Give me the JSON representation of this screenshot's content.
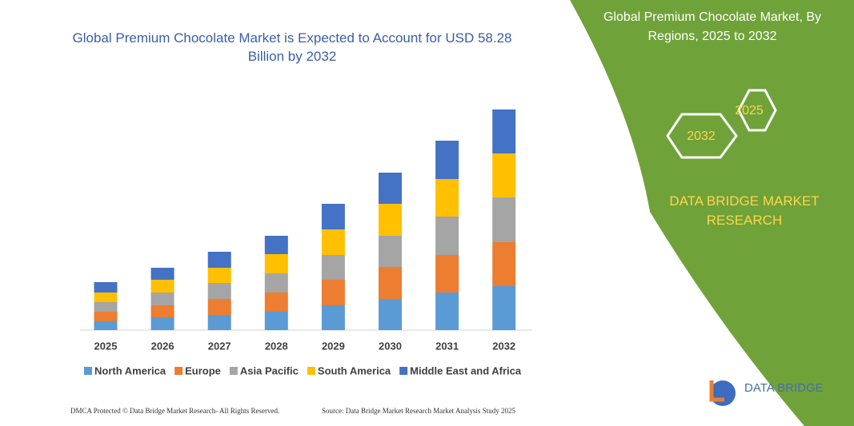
{
  "chart_data": {
    "type": "stacked_bar",
    "title": "Global Premium Chocolate Market is Expected to Account for USD 58.28 Billion by 2032",
    "categories": [
      "2025",
      "2026",
      "2027",
      "2028",
      "2029",
      "2030",
      "2031",
      "2032"
    ],
    "series": [
      {
        "name": "North America",
        "color": "#5b9bd5",
        "values": [
          11,
          16,
          19,
          23,
          31,
          39,
          47,
          55
        ]
      },
      {
        "name": "Europe",
        "color": "#ed7d31",
        "values": [
          12,
          15,
          20,
          24,
          32,
          40,
          47,
          55
        ]
      },
      {
        "name": "Asia Pacific",
        "color": "#a5a5a5",
        "values": [
          12,
          16,
          20,
          24,
          31,
          39,
          48,
          56
        ]
      },
      {
        "name": "South America",
        "color": "#ffc000",
        "values": [
          12,
          16,
          19,
          24,
          32,
          40,
          47,
          55
        ]
      },
      {
        "name": "Middle East and Africa",
        "color": "#4472c4",
        "values": [
          13,
          15,
          20,
          23,
          32,
          39,
          48,
          55
        ]
      }
    ],
    "ylim": [
      0,
      276
    ]
  },
  "panel": {
    "title": "Global Premium Chocolate Market, By Regions, 2025 to 2032",
    "badge_end": "2032",
    "badge_start": "2025",
    "brand": "DATA BRIDGE MARKET RESEARCH",
    "logo": "DATA BRIDGE"
  },
  "footer": {
    "left": "DMCA Protected © Data Bridge Market Research-  All Rights Reserved.",
    "right": "Source: Data Bridge Market Research  Market Analysis Study 2025"
  }
}
